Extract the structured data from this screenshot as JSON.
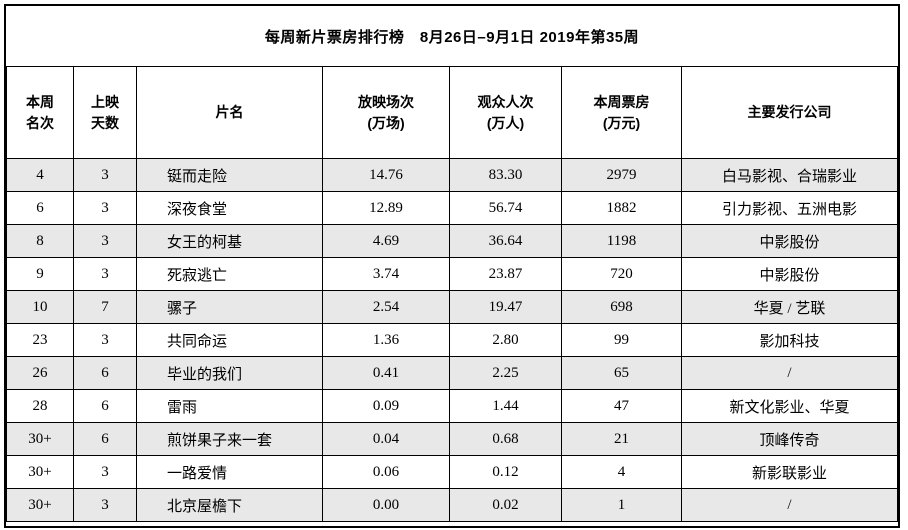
{
  "colors": {
    "border": "#000000",
    "text": "#000000",
    "row_alt_bg": "#e8e8e8",
    "row_bg": "#ffffff"
  },
  "title": "每周新片票房排行榜　8月26日–9月1日 2019年第35周",
  "table": {
    "headers": {
      "rank": "本周\n名次",
      "days": "上映\n天数",
      "film": "片名",
      "screenings": "放映场次\n(万场)",
      "admissions": "观众人次\n(万人)",
      "box_office": "本周票房\n(万元)",
      "distributor": "主要发行公司"
    },
    "rows": [
      {
        "rank": "4",
        "days": "3",
        "film": "铤而走险",
        "screenings": "14.76",
        "admissions": "83.30",
        "box_office": "2979",
        "distributor": "白马影视、合瑞影业"
      },
      {
        "rank": "6",
        "days": "3",
        "film": "深夜食堂",
        "screenings": "12.89",
        "admissions": "56.74",
        "box_office": "1882",
        "distributor": "引力影视、五洲电影"
      },
      {
        "rank": "8",
        "days": "3",
        "film": "女王的柯基",
        "screenings": "4.69",
        "admissions": "36.64",
        "box_office": "1198",
        "distributor": "中影股份"
      },
      {
        "rank": "9",
        "days": "3",
        "film": "死寂逃亡",
        "screenings": "3.74",
        "admissions": "23.87",
        "box_office": "720",
        "distributor": "中影股份"
      },
      {
        "rank": "10",
        "days": "7",
        "film": "骡子",
        "screenings": "2.54",
        "admissions": "19.47",
        "box_office": "698",
        "distributor": "华夏 / 艺联"
      },
      {
        "rank": "23",
        "days": "3",
        "film": "共同命运",
        "screenings": "1.36",
        "admissions": "2.80",
        "box_office": "99",
        "distributor": "影加科技"
      },
      {
        "rank": "26",
        "days": "6",
        "film": "毕业的我们",
        "screenings": "0.41",
        "admissions": "2.25",
        "box_office": "65",
        "distributor": "/"
      },
      {
        "rank": "28",
        "days": "6",
        "film": "雷雨",
        "screenings": "0.09",
        "admissions": "1.44",
        "box_office": "47",
        "distributor": "新文化影业、华夏"
      },
      {
        "rank": "30+",
        "days": "6",
        "film": "煎饼果子来一套",
        "screenings": "0.04",
        "admissions": "0.68",
        "box_office": "21",
        "distributor": "顶峰传奇"
      },
      {
        "rank": "30+",
        "days": "3",
        "film": "一路爱情",
        "screenings": "0.06",
        "admissions": "0.12",
        "box_office": "4",
        "distributor": "新影联影业"
      },
      {
        "rank": "30+",
        "days": "3",
        "film": "北京屋檐下",
        "screenings": "0.00",
        "admissions": "0.02",
        "box_office": "1",
        "distributor": "/"
      }
    ]
  }
}
